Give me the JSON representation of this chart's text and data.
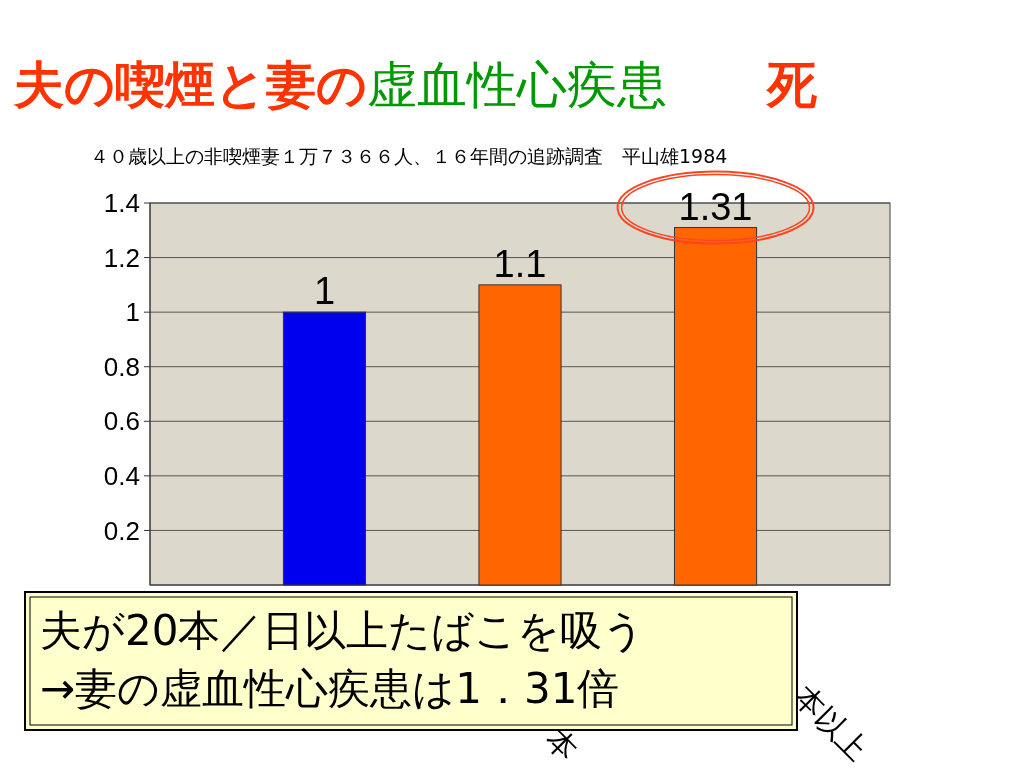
{
  "chart_data": {
    "type": "bar",
    "title": "夫の喫煙と妻の虚血性心疾患　　死",
    "subtitle": "４０歳以上の非喫煙妻１万７３６６人、１６年間の追跡調査　平山雄1984",
    "categories": [
      null,
      "本",
      "本以上"
    ],
    "values": [
      1,
      1.1,
      1.31
    ],
    "colors": [
      "#0000ee",
      "#ff6600",
      "#ff6600"
    ],
    "ylim": [
      0,
      1.4
    ],
    "yticks": [
      0.2,
      0.4,
      0.6,
      0.8,
      1,
      1.2,
      1.4
    ],
    "grid": "y",
    "data_labels": true,
    "annotations": [
      "夫が20本／日以上たばこを吸う",
      "→妻の虚血性心疾患は1．31倍"
    ]
  }
}
